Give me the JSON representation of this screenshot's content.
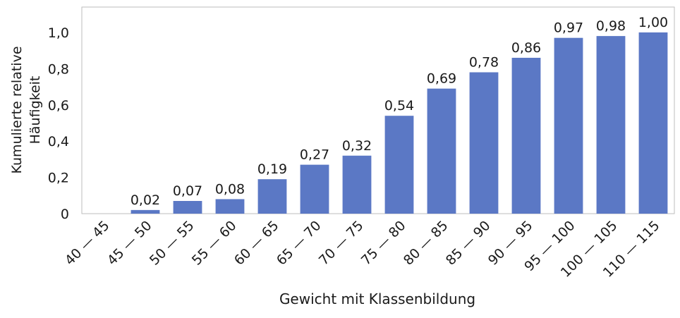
{
  "chart_data": {
    "type": "bar",
    "xlabel": "Gewicht mit Klassenbildung",
    "ylabel_lines": [
      "Kumulierte relative",
      "Häufigkeit"
    ],
    "ylim": [
      0,
      1.14
    ],
    "yticks": [
      0,
      0.2,
      0.4,
      0.6,
      0.8,
      1.0
    ],
    "ytick_labels": [
      "0",
      "0,2",
      "0,4",
      "0,6",
      "0,8",
      "1,0"
    ],
    "categories": [
      "40 — 45",
      "45 — 50",
      "50 — 55",
      "55 — 60",
      "60 — 65",
      "65 — 70",
      "70 — 75",
      "75 — 80",
      "80 — 85",
      "85 — 90",
      "90 — 95",
      "95 — 100",
      "100 — 105",
      "110 — 115"
    ],
    "values": [
      0.0,
      0.02,
      0.07,
      0.08,
      0.19,
      0.27,
      0.32,
      0.54,
      0.69,
      0.78,
      0.86,
      0.97,
      0.98,
      1.0
    ],
    "value_labels": [
      "",
      "0,02",
      "0,07",
      "0,08",
      "0,19",
      "0,27",
      "0,32",
      "0,54",
      "0,69",
      "0,78",
      "0,86",
      "0,97",
      "0,98",
      "1,00"
    ],
    "bar_color": "#5b78c5",
    "grid": false,
    "legend": "none"
  }
}
